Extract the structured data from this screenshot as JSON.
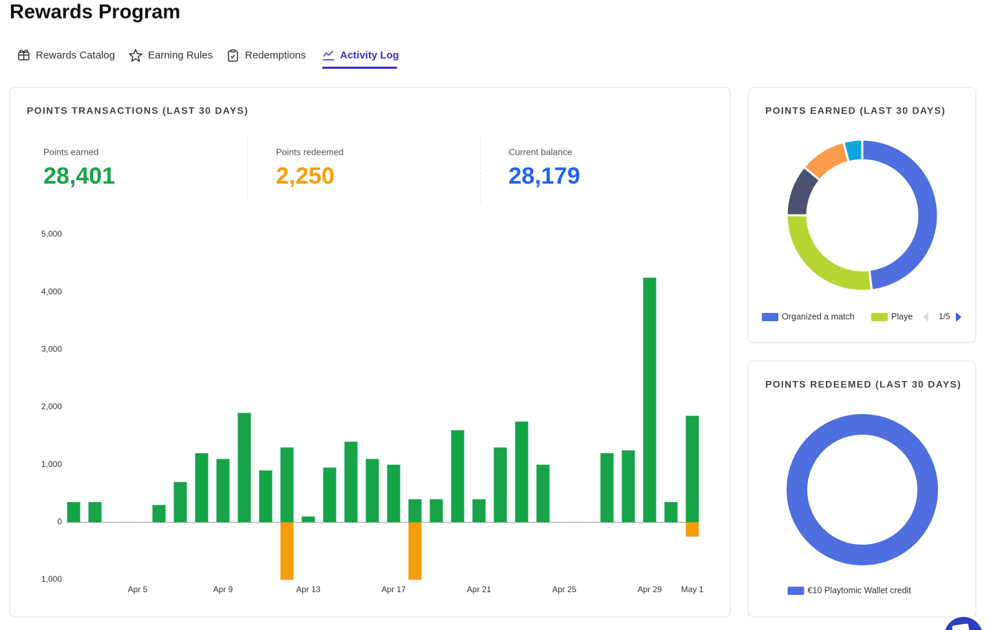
{
  "page": {
    "title": "Rewards Program",
    "tabs": [
      "Rewards Catalog",
      "Earning Rules",
      "Redemptions",
      "Activity Log"
    ],
    "active_tab": 3
  },
  "stats": [
    {
      "label": "Points earned",
      "value": "28,401",
      "color": "#16a34a"
    },
    {
      "label": "Points redeemed",
      "value": "2,250",
      "color": "#f59e0b"
    },
    {
      "label": "Current balance",
      "value": "28,179",
      "color": "#2563eb"
    }
  ],
  "chart_data": [
    {
      "type": "bar",
      "title": "POINTS TRANSACTIONS (LAST 30 DAYS)",
      "categories": [
        null,
        null,
        null,
        "Apr 5",
        null,
        null,
        null,
        "Apr 9",
        null,
        null,
        null,
        "Apr 13",
        null,
        null,
        null,
        "Apr 17",
        null,
        null,
        null,
        "Apr 21",
        null,
        null,
        null,
        "Apr 25",
        null,
        null,
        null,
        "Apr 29",
        null,
        "May 1"
      ],
      "series": [
        {
          "color": "#16a34a",
          "values": [
            350,
            350,
            0,
            0,
            300,
            700,
            1200,
            1100,
            1900,
            900,
            1300,
            100,
            950,
            1400,
            1100,
            1000,
            400,
            400,
            1600,
            400,
            1300,
            1750,
            1000,
            0,
            0,
            1200,
            1250,
            4250,
            350,
            1850
          ]
        },
        {
          "color": "#f59e0b",
          "values": [
            0,
            0,
            0,
            0,
            0,
            0,
            0,
            0,
            0,
            0,
            -1000,
            0,
            0,
            0,
            0,
            0,
            -1000,
            0,
            0,
            0,
            0,
            0,
            0,
            0,
            0,
            0,
            0,
            0,
            0,
            -250
          ]
        }
      ],
      "ylim": [
        -1000,
        5000
      ],
      "yticks": [
        {
          "value": 5000,
          "label": "5,000"
        },
        {
          "value": 4000,
          "label": "4,000"
        },
        {
          "value": 3000,
          "label": "3,000"
        },
        {
          "value": 2000,
          "label": "2,000"
        },
        {
          "value": 1000,
          "label": "1,000"
        },
        0,
        {
          "value": -1000,
          "label": "1,000"
        }
      ],
      "grid": false
    },
    {
      "type": "donut",
      "title": "POINTS EARNED (LAST 30 DAYS)",
      "categories": [
        "Organized a match",
        "Playe",
        null,
        null,
        null
      ],
      "values": [
        48,
        27,
        11,
        10,
        4
      ],
      "colors": [
        "#4f6fdf",
        "#b6d634",
        "#4b5270",
        "#fb9a4b",
        "#0ea5e0"
      ],
      "legend_page": "1/5"
    },
    {
      "type": "donut",
      "title": "POINTS REDEEMED (LAST 30 DAYS)",
      "categories": [
        "€10 Playtomic Wallet credit"
      ],
      "values": [
        100
      ],
      "colors": [
        "#4f6fdf"
      ]
    }
  ]
}
